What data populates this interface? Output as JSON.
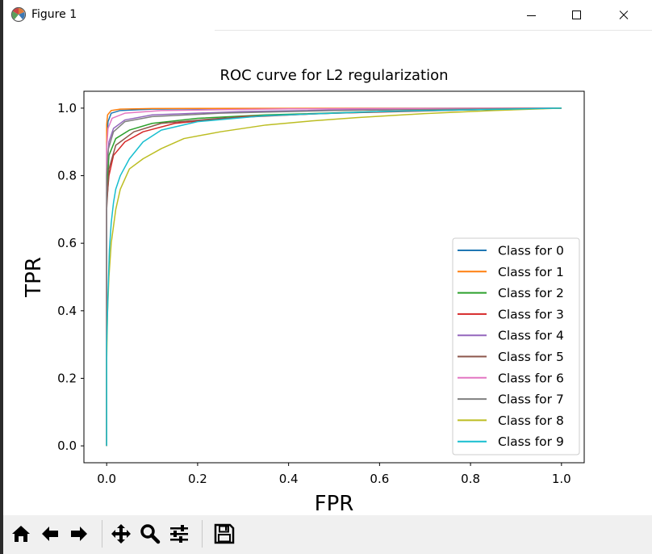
{
  "window": {
    "title": "Figure 1",
    "buttons": {
      "minimize": "minimize",
      "maximize": "maximize",
      "close": "close"
    }
  },
  "toolbar": {
    "tools": [
      "home-icon",
      "back-arrow-icon",
      "forward-arrow-icon",
      "pan-icon",
      "zoom-icon",
      "configure-subplots-icon",
      "save-icon"
    ]
  },
  "chart_data": {
    "type": "line",
    "title": "ROC curve for L2 regularization",
    "xlabel": "FPR",
    "ylabel": "TPR",
    "xlim": [
      -0.05,
      1.05
    ],
    "ylim": [
      -0.05,
      1.05
    ],
    "xticks": [
      "0.0",
      "0.2",
      "0.4",
      "0.6",
      "0.8",
      "1.0"
    ],
    "yticks": [
      "0.0",
      "0.2",
      "0.4",
      "0.6",
      "0.8",
      "1.0"
    ],
    "grid": false,
    "legend_position": "lower-right",
    "series": [
      {
        "name": "Class for 0",
        "color": "#1f77b4",
        "points": [
          [
            0,
            0
          ],
          [
            0,
            0.9
          ],
          [
            0.003,
            0.96
          ],
          [
            0.01,
            0.985
          ],
          [
            0.03,
            0.993
          ],
          [
            0.1,
            0.997
          ],
          [
            0.3,
            0.999
          ],
          [
            1,
            1
          ]
        ]
      },
      {
        "name": "Class for 1",
        "color": "#ff7f0e",
        "points": [
          [
            0,
            0
          ],
          [
            0,
            0.95
          ],
          [
            0.002,
            0.98
          ],
          [
            0.01,
            0.993
          ],
          [
            0.03,
            0.997
          ],
          [
            0.1,
            0.999
          ],
          [
            1,
            1
          ]
        ]
      },
      {
        "name": "Class for 2",
        "color": "#2ca02c",
        "points": [
          [
            0,
            0
          ],
          [
            0,
            0.75
          ],
          [
            0.005,
            0.86
          ],
          [
            0.02,
            0.91
          ],
          [
            0.05,
            0.935
          ],
          [
            0.1,
            0.955
          ],
          [
            0.2,
            0.97
          ],
          [
            0.35,
            0.98
          ],
          [
            0.6,
            0.99
          ],
          [
            1,
            1
          ]
        ]
      },
      {
        "name": "Class for 3",
        "color": "#d62728",
        "points": [
          [
            0,
            0
          ],
          [
            0,
            0.72
          ],
          [
            0.005,
            0.8
          ],
          [
            0.015,
            0.86
          ],
          [
            0.04,
            0.9
          ],
          [
            0.08,
            0.93
          ],
          [
            0.15,
            0.955
          ],
          [
            0.3,
            0.975
          ],
          [
            0.5,
            0.985
          ],
          [
            0.8,
            0.995
          ],
          [
            1,
            1
          ]
        ]
      },
      {
        "name": "Class for 4",
        "color": "#9467bd",
        "points": [
          [
            0,
            0
          ],
          [
            0,
            0.82
          ],
          [
            0.005,
            0.9
          ],
          [
            0.015,
            0.94
          ],
          [
            0.04,
            0.965
          ],
          [
            0.1,
            0.98
          ],
          [
            0.3,
            0.99
          ],
          [
            0.6,
            0.997
          ],
          [
            1,
            1
          ]
        ]
      },
      {
        "name": "Class for 5",
        "color": "#8c564b",
        "points": [
          [
            0,
            0
          ],
          [
            0,
            0.7
          ],
          [
            0.005,
            0.82
          ],
          [
            0.02,
            0.89
          ],
          [
            0.06,
            0.93
          ],
          [
            0.12,
            0.955
          ],
          [
            0.25,
            0.97
          ],
          [
            0.45,
            0.983
          ],
          [
            0.7,
            0.993
          ],
          [
            1,
            1
          ]
        ]
      },
      {
        "name": "Class for 6",
        "color": "#e377c2",
        "points": [
          [
            0,
            0
          ],
          [
            0,
            0.88
          ],
          [
            0.003,
            0.94
          ],
          [
            0.012,
            0.97
          ],
          [
            0.04,
            0.985
          ],
          [
            0.12,
            0.993
          ],
          [
            0.4,
            0.998
          ],
          [
            1,
            1
          ]
        ]
      },
      {
        "name": "Class for 7",
        "color": "#7f7f7f",
        "points": [
          [
            0,
            0
          ],
          [
            0,
            0.8
          ],
          [
            0.004,
            0.88
          ],
          [
            0.015,
            0.93
          ],
          [
            0.04,
            0.96
          ],
          [
            0.1,
            0.975
          ],
          [
            0.25,
            0.985
          ],
          [
            0.5,
            0.993
          ],
          [
            1,
            1
          ]
        ]
      },
      {
        "name": "Class for 8",
        "color": "#bcbd22",
        "points": [
          [
            0,
            0
          ],
          [
            0,
            0.25
          ],
          [
            0.002,
            0.4
          ],
          [
            0.005,
            0.5
          ],
          [
            0.01,
            0.6
          ],
          [
            0.02,
            0.7
          ],
          [
            0.03,
            0.76
          ],
          [
            0.05,
            0.82
          ],
          [
            0.08,
            0.85
          ],
          [
            0.12,
            0.88
          ],
          [
            0.17,
            0.91
          ],
          [
            0.25,
            0.93
          ],
          [
            0.35,
            0.95
          ],
          [
            0.45,
            0.962
          ],
          [
            0.55,
            0.972
          ],
          [
            0.7,
            0.984
          ],
          [
            0.85,
            0.993
          ],
          [
            1,
            1
          ]
        ]
      },
      {
        "name": "Class for 9",
        "color": "#17becf",
        "points": [
          [
            0,
            0
          ],
          [
            0,
            0.3
          ],
          [
            0.003,
            0.45
          ],
          [
            0.006,
            0.58
          ],
          [
            0.01,
            0.66
          ],
          [
            0.015,
            0.72
          ],
          [
            0.02,
            0.76
          ],
          [
            0.03,
            0.8
          ],
          [
            0.05,
            0.85
          ],
          [
            0.08,
            0.9
          ],
          [
            0.12,
            0.935
          ],
          [
            0.2,
            0.96
          ],
          [
            0.35,
            0.978
          ],
          [
            0.6,
            0.99
          ],
          [
            1,
            1
          ]
        ]
      }
    ]
  }
}
